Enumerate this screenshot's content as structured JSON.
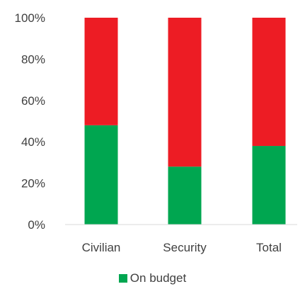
{
  "chart_data": {
    "type": "bar",
    "stacked": true,
    "categories": [
      "Civilian",
      "Security",
      "Total"
    ],
    "series": [
      {
        "name": "On budget",
        "values": [
          48,
          28,
          38
        ],
        "color": "#00A650"
      },
      {
        "name": "",
        "values": [
          52,
          72,
          62
        ],
        "color": "#ED1C24"
      }
    ],
    "yticks": [
      "0%",
      "20%",
      "40%",
      "60%",
      "80%",
      "100%"
    ],
    "ylim": [
      0,
      100
    ],
    "grid": false,
    "legend_position": "bottom"
  }
}
